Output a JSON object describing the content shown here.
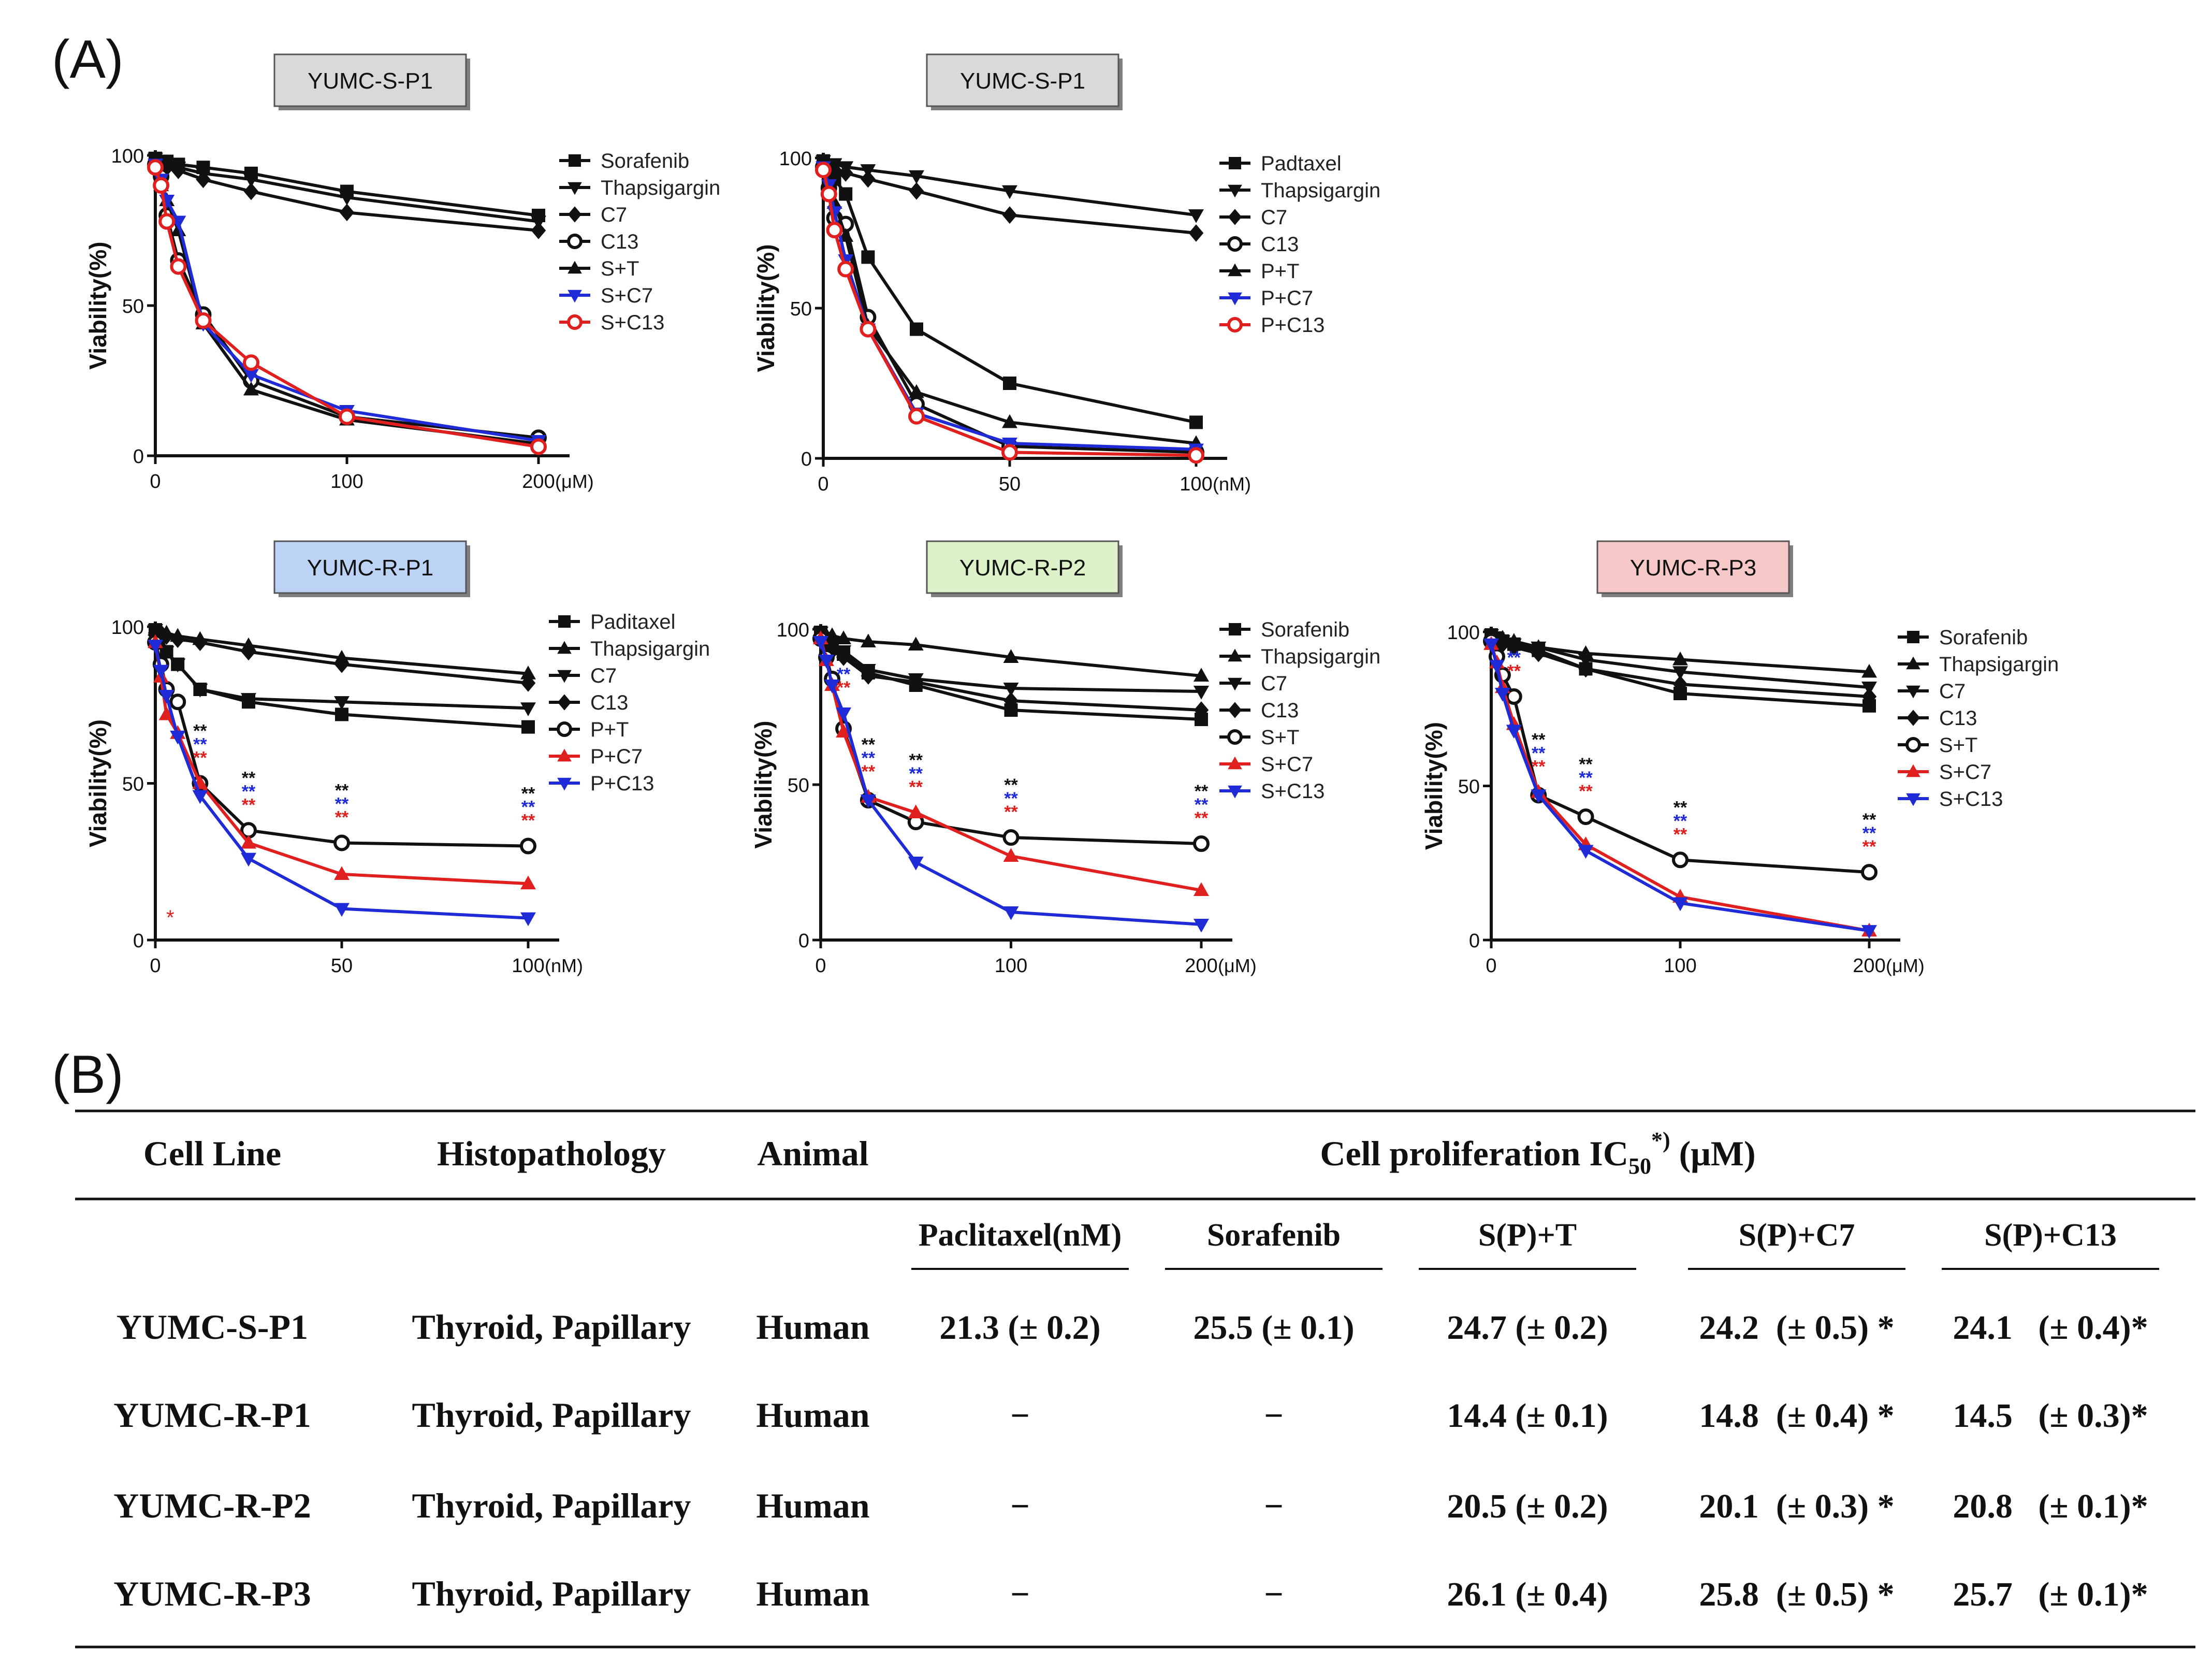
{
  "panel_labels": {
    "a": "(A)",
    "b": "(B)"
  },
  "colors": {
    "black": "#111111",
    "blue": "#1f2bd6",
    "red": "#e0201f",
    "box_gray": "#d9d9d9",
    "box_blue": "#bcd3f5",
    "box_green": "#ddf2c8",
    "box_red": "#f7c8c8"
  },
  "chart_data": [
    {
      "type": "line",
      "title": "YUMC-S-P1",
      "box": "box_gray",
      "ylabel": "Viability(%)",
      "xlim": [
        0,
        200
      ],
      "ylim": [
        0,
        100
      ],
      "xticks": [
        "0",
        "100",
        "200"
      ],
      "xunit": "(μM)",
      "yticks": [
        "0",
        "50",
        "100"
      ],
      "series": [
        {
          "name": "Sorafenib",
          "color": "black",
          "marker": "square",
          "x": [
            0,
            3,
            6,
            12,
            25,
            50,
            100,
            200
          ],
          "y": [
            99,
            98,
            98,
            97,
            96,
            94,
            88,
            80
          ]
        },
        {
          "name": "Thapsigargin",
          "color": "black",
          "marker": "tri-down",
          "x": [
            0,
            3,
            6,
            12,
            25,
            50,
            100,
            200
          ],
          "y": [
            99,
            98,
            97,
            96,
            94,
            92,
            86,
            78
          ]
        },
        {
          "name": "C7",
          "color": "black",
          "marker": "diamond",
          "x": [
            0,
            3,
            6,
            12,
            25,
            50,
            100,
            200
          ],
          "y": [
            98,
            97,
            96,
            95,
            92,
            88,
            81,
            75
          ]
        },
        {
          "name": "C13",
          "color": "black",
          "marker": "circle",
          "x": [
            0,
            3,
            6,
            12,
            25,
            50,
            100,
            200
          ],
          "y": [
            97,
            93,
            80,
            65,
            47,
            25,
            13,
            6
          ]
        },
        {
          "name": "S+T",
          "color": "black",
          "marker": "tri-up",
          "x": [
            0,
            3,
            6,
            12,
            25,
            50,
            100,
            200
          ],
          "y": [
            97,
            90,
            85,
            75,
            44,
            22,
            12,
            4
          ]
        },
        {
          "name": "S+C7",
          "color": "blue",
          "marker": "tri-down",
          "x": [
            0,
            3,
            6,
            12,
            25,
            50,
            100,
            200
          ],
          "y": [
            97,
            92,
            85,
            78,
            44,
            27,
            15,
            5
          ]
        },
        {
          "name": "S+C13",
          "color": "red",
          "marker": "circle",
          "x": [
            0,
            3,
            6,
            12,
            25,
            50,
            100,
            200
          ],
          "y": [
            96,
            90,
            78,
            63,
            45,
            31,
            13,
            3
          ]
        }
      ]
    },
    {
      "type": "line",
      "title": "YUMC-S-P1",
      "box": "box_gray",
      "ylabel": "Viability(%)",
      "xlim": [
        0,
        100
      ],
      "ylim": [
        0,
        100
      ],
      "xticks": [
        "0",
        "50",
        "100"
      ],
      "xunit": "(nM)",
      "yticks": [
        "0",
        "50",
        "100"
      ],
      "series": [
        {
          "name": "Padtaxel",
          "color": "black",
          "marker": "square",
          "x": [
            0,
            1.5,
            3,
            6,
            12,
            25,
            50,
            100
          ],
          "y": [
            99,
            97,
            93,
            88,
            67,
            43,
            25,
            12
          ]
        },
        {
          "name": "Thapsigargin",
          "color": "black",
          "marker": "tri-down",
          "x": [
            0,
            1.5,
            3,
            6,
            12,
            25,
            50,
            100
          ],
          "y": [
            99,
            98,
            98,
            97,
            96,
            94,
            89,
            81
          ]
        },
        {
          "name": "C7",
          "color": "black",
          "marker": "diamond",
          "x": [
            0,
            1.5,
            3,
            6,
            12,
            25,
            50,
            100
          ],
          "y": [
            98,
            97,
            96,
            95,
            93,
            89,
            81,
            75
          ]
        },
        {
          "name": "C13",
          "color": "black",
          "marker": "circle",
          "x": [
            0,
            1.5,
            3,
            6,
            12,
            25,
            50,
            100
          ],
          "y": [
            97,
            90,
            80,
            78,
            47,
            18,
            4,
            2
          ]
        },
        {
          "name": "P+T",
          "color": "black",
          "marker": "tri-up",
          "x": [
            0,
            1.5,
            3,
            6,
            12,
            25,
            50,
            100
          ],
          "y": [
            97,
            92,
            85,
            74,
            44,
            22,
            12,
            5
          ]
        },
        {
          "name": "P+C7",
          "color": "blue",
          "marker": "tri-down",
          "x": [
            0,
            1.5,
            3,
            6,
            12,
            25,
            50,
            100
          ],
          "y": [
            97,
            91,
            82,
            66,
            43,
            15,
            5,
            3
          ]
        },
        {
          "name": "P+C13",
          "color": "red",
          "marker": "circle",
          "x": [
            0,
            1.5,
            3,
            6,
            12,
            25,
            50,
            100
          ],
          "y": [
            96,
            88,
            76,
            63,
            43,
            14,
            2,
            1
          ]
        }
      ]
    },
    {
      "type": "line",
      "title": "YUMC-R-P1",
      "box": "box_blue",
      "ylabel": "Viability(%)",
      "xlim": [
        0,
        100
      ],
      "ylim": [
        0,
        100
      ],
      "xticks": [
        "0",
        "50",
        "100"
      ],
      "xunit": "(nM)",
      "yticks": [
        "0",
        "50",
        "100"
      ],
      "series": [
        {
          "name": "Paditaxel",
          "color": "black",
          "marker": "square",
          "x": [
            0,
            1.5,
            3,
            6,
            12,
            25,
            50,
            100
          ],
          "y": [
            99,
            97,
            92,
            88,
            80,
            76,
            72,
            68
          ]
        },
        {
          "name": "Thapsigargin",
          "color": "black",
          "marker": "tri-up",
          "x": [
            0,
            1.5,
            3,
            6,
            12,
            25,
            50,
            100
          ],
          "y": [
            99,
            98,
            98,
            97,
            96,
            94,
            90,
            85
          ]
        },
        {
          "name": "C7",
          "color": "black",
          "marker": "tri-down",
          "x": [
            0,
            1.5,
            3,
            6,
            12,
            25,
            50,
            100
          ],
          "y": [
            99,
            96,
            92,
            88,
            80,
            77,
            76,
            74
          ]
        },
        {
          "name": "C13",
          "color": "black",
          "marker": "diamond",
          "x": [
            0,
            1.5,
            3,
            6,
            12,
            25,
            50,
            100
          ],
          "y": [
            98,
            98,
            97,
            96,
            95,
            92,
            88,
            82
          ]
        },
        {
          "name": "P+T",
          "color": "black",
          "marker": "circle",
          "x": [
            0,
            1.5,
            3,
            6,
            12,
            25,
            50,
            100
          ],
          "y": [
            95,
            88,
            80,
            76,
            50,
            35,
            31,
            30
          ]
        },
        {
          "name": "P+C7",
          "color": "red",
          "marker": "tri-up",
          "x": [
            0,
            1.5,
            3,
            6,
            12,
            25,
            50,
            100
          ],
          "y": [
            95,
            84,
            72,
            66,
            50,
            31,
            21,
            18
          ]
        },
        {
          "name": "P+C13",
          "color": "blue",
          "marker": "tri-down",
          "x": [
            0,
            1.5,
            3,
            6,
            12,
            25,
            50,
            100
          ],
          "y": [
            94,
            86,
            78,
            65,
            46,
            26,
            10,
            7
          ]
        }
      ]
    },
    {
      "type": "line",
      "title": "YUMC-R-P2",
      "box": "box_green",
      "ylabel": "Viability(%)",
      "xlim": [
        0,
        200
      ],
      "ylim": [
        0,
        100
      ],
      "xticks": [
        "0",
        "100",
        "200"
      ],
      "xunit": "(μM)",
      "yticks": [
        "0",
        "50",
        "100"
      ],
      "series": [
        {
          "name": "Sorafenib",
          "color": "black",
          "marker": "square",
          "x": [
            0,
            3,
            6,
            12,
            25,
            50,
            100,
            200
          ],
          "y": [
            99,
            97,
            94,
            92,
            86,
            82,
            74,
            71
          ]
        },
        {
          "name": "Thapsigargin",
          "color": "black",
          "marker": "tri-up",
          "x": [
            0,
            3,
            6,
            12,
            25,
            50,
            100,
            200
          ],
          "y": [
            99,
            98,
            98,
            97,
            96,
            95,
            91,
            85
          ]
        },
        {
          "name": "C7",
          "color": "black",
          "marker": "tri-down",
          "x": [
            0,
            3,
            6,
            12,
            25,
            50,
            100,
            200
          ],
          "y": [
            99,
            97,
            95,
            93,
            87,
            84,
            81,
            80
          ]
        },
        {
          "name": "C13",
          "color": "black",
          "marker": "diamond",
          "x": [
            0,
            3,
            6,
            12,
            25,
            50,
            100,
            200
          ],
          "y": [
            98,
            96,
            93,
            91,
            85,
            83,
            77,
            74
          ]
        },
        {
          "name": "S+T",
          "color": "black",
          "marker": "circle",
          "x": [
            0,
            3,
            6,
            12,
            25,
            50,
            100,
            200
          ],
          "y": [
            97,
            91,
            84,
            68,
            45,
            38,
            33,
            31
          ]
        },
        {
          "name": "S+C7",
          "color": "red",
          "marker": "tri-up",
          "x": [
            0,
            3,
            6,
            12,
            25,
            50,
            100,
            200
          ],
          "y": [
            97,
            90,
            82,
            67,
            46,
            41,
            27,
            16
          ]
        },
        {
          "name": "S+C13",
          "color": "blue",
          "marker": "tri-down",
          "x": [
            0,
            3,
            6,
            12,
            25,
            50,
            100,
            200
          ],
          "y": [
            96,
            90,
            82,
            73,
            45,
            25,
            9,
            5
          ]
        }
      ]
    },
    {
      "type": "line",
      "title": "YUMC-R-P3",
      "box": "box_red",
      "ylabel": "Viability(%)",
      "xlim": [
        0,
        200
      ],
      "ylim": [
        0,
        100
      ],
      "xticks": [
        "0",
        "100",
        "200"
      ],
      "xunit": "(μM)",
      "yticks": [
        "0",
        "50",
        "100"
      ],
      "series": [
        {
          "name": "Sorafenib",
          "color": "black",
          "marker": "square",
          "x": [
            0,
            3,
            6,
            12,
            25,
            50,
            100,
            200
          ],
          "y": [
            99,
            98,
            97,
            96,
            94,
            88,
            80,
            76
          ]
        },
        {
          "name": "Thapsigargin",
          "color": "black",
          "marker": "tri-up",
          "x": [
            0,
            3,
            6,
            12,
            25,
            50,
            100,
            200
          ],
          "y": [
            99,
            98,
            98,
            97,
            95,
            93,
            91,
            87
          ]
        },
        {
          "name": "C7",
          "color": "black",
          "marker": "tri-down",
          "x": [
            0,
            3,
            6,
            12,
            25,
            50,
            100,
            200
          ],
          "y": [
            99,
            98,
            97,
            96,
            95,
            91,
            87,
            82
          ]
        },
        {
          "name": "C13",
          "color": "black",
          "marker": "diamond",
          "x": [
            0,
            3,
            6,
            12,
            25,
            50,
            100,
            200
          ],
          "y": [
            98,
            97,
            96,
            95,
            93,
            88,
            83,
            79
          ]
        },
        {
          "name": "S+T",
          "color": "black",
          "marker": "circle",
          "x": [
            0,
            3,
            6,
            12,
            25,
            50,
            100,
            200
          ],
          "y": [
            97,
            92,
            86,
            79,
            47,
            40,
            26,
            22
          ]
        },
        {
          "name": "S+C7",
          "color": "red",
          "marker": "tri-up",
          "x": [
            0,
            3,
            6,
            12,
            25,
            50,
            100,
            200
          ],
          "y": [
            96,
            90,
            82,
            70,
            48,
            31,
            14,
            3
          ]
        },
        {
          "name": "S+C13",
          "color": "blue",
          "marker": "tri-down",
          "x": [
            0,
            3,
            6,
            12,
            25,
            50,
            100,
            200
          ],
          "y": [
            96,
            89,
            80,
            68,
            47,
            29,
            12,
            3
          ]
        }
      ]
    }
  ],
  "significance_mark": "**",
  "significance_single": "*",
  "table": {
    "headers": {
      "cell_line": "Cell Line",
      "histopathology": "Histopathology",
      "animal": "Animal",
      "ic50_prefix": "Cell proliferation  IC",
      "ic50_sub": "50",
      "ic50_sup": "*)",
      "ic50_unit": " (μM)"
    },
    "sub_headers": [
      "Paclitaxel(nM)",
      "Sorafenib",
      "S(P)+T",
      "S(P)+C7",
      "S(P)+C13"
    ],
    "rows": [
      {
        "cell_line": "YUMC-S-P1",
        "histopathology": "Thyroid,  Papillary",
        "animal": "Human",
        "values": [
          "21.3 (± 0.2)",
          "25.5 (± 0.1)",
          "24.7 (± 0.2)",
          "24.2  (± 0.5) *",
          "24.1   (± 0.4)*"
        ]
      },
      {
        "cell_line": "YUMC-R-P1",
        "histopathology": "Thyroid,  Papillary",
        "animal": "Human",
        "values": [
          "−",
          "−",
          "14.4 (± 0.1)",
          "14.8  (± 0.4) *",
          "14.5   (± 0.3)*"
        ]
      },
      {
        "cell_line": "YUMC-R-P2",
        "histopathology": "Thyroid,  Papillary",
        "animal": "Human",
        "values": [
          "−",
          "−",
          "20.5 (± 0.2)",
          "20.1  (± 0.3) *",
          "20.8   (± 0.1)*"
        ]
      },
      {
        "cell_line": "YUMC-R-P3",
        "histopathology": "Thyroid,  Papillary",
        "animal": "Human",
        "values": [
          "−",
          "−",
          "26.1 (± 0.4)",
          "25.8  (± 0.5) *",
          "25.7   (± 0.1)*"
        ]
      }
    ]
  }
}
